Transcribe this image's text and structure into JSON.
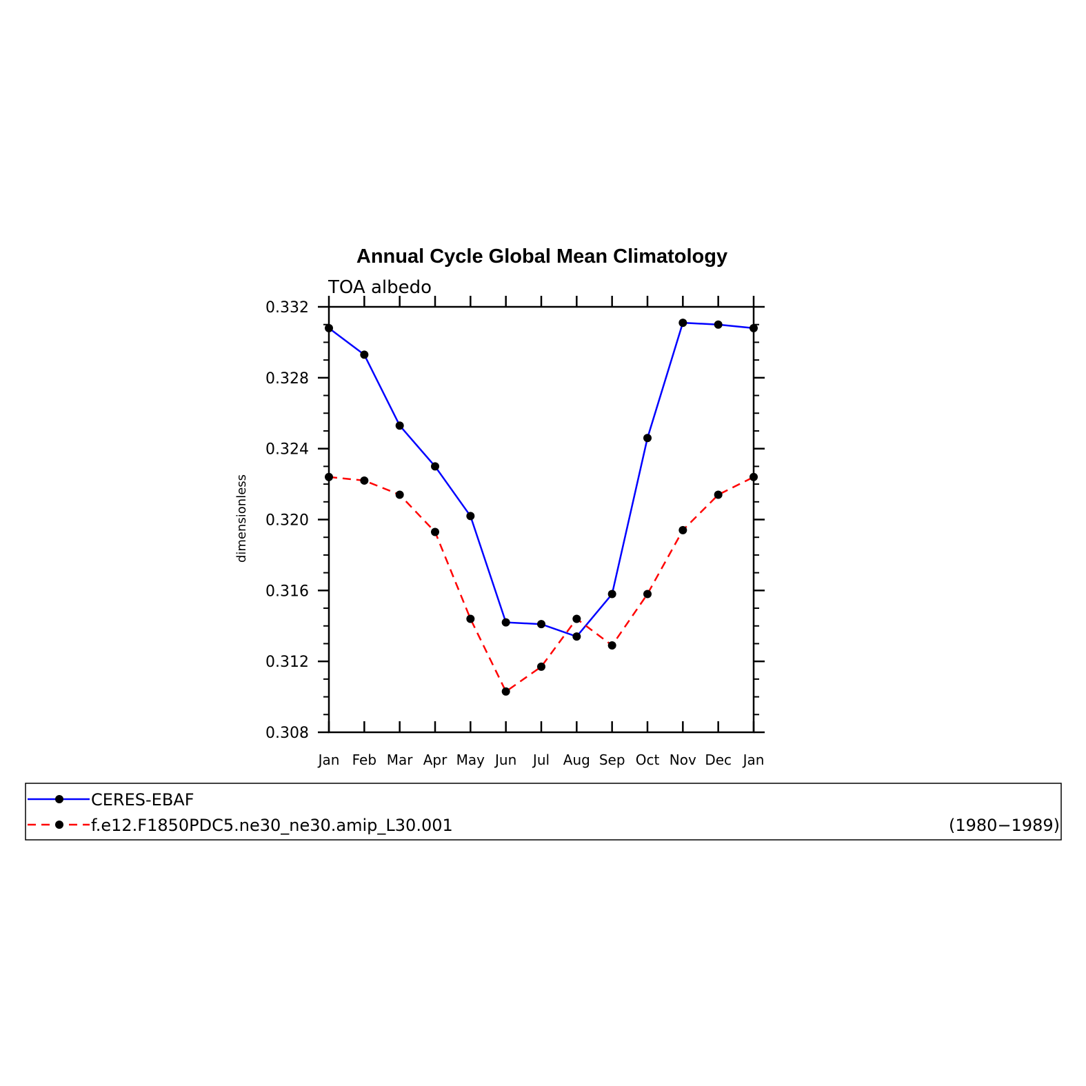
{
  "chart_data": {
    "type": "line",
    "title": "Annual Cycle Global Mean Climatology",
    "subtitle": "TOA albedo",
    "xlabel": "",
    "ylabel": "dimensionless",
    "categories": [
      "Jan",
      "Feb",
      "Mar",
      "Apr",
      "May",
      "Jun",
      "Jul",
      "Aug",
      "Sep",
      "Oct",
      "Nov",
      "Dec",
      "Jan"
    ],
    "ylim": [
      0.308,
      0.332
    ],
    "yticks": [
      "0.308",
      "0.312",
      "0.316",
      "0.320",
      "0.324",
      "0.328",
      "0.332"
    ],
    "series": [
      {
        "name": "CERES-EBAF",
        "color": "#0000ff",
        "line_style": "solid",
        "marker": "filled-circle",
        "values": [
          0.3308,
          0.3293,
          0.3253,
          0.323,
          0.3202,
          0.3142,
          0.3141,
          0.3134,
          0.3158,
          0.3246,
          0.3311,
          0.331,
          0.3308
        ]
      },
      {
        "name": "f.e12.F1850PDC5.ne30_ne30.amip_L30.001",
        "color": "#ff0000",
        "line_style": "dashed",
        "marker": "filled-circle",
        "values": [
          0.3224,
          0.3222,
          0.3214,
          0.3193,
          0.3144,
          0.3103,
          0.3117,
          0.3144,
          0.3129,
          0.3158,
          0.3194,
          0.3214,
          0.3224
        ]
      }
    ],
    "legend": {
      "placement": "bottom",
      "period": "(1980−1989)"
    },
    "grid": false
  }
}
